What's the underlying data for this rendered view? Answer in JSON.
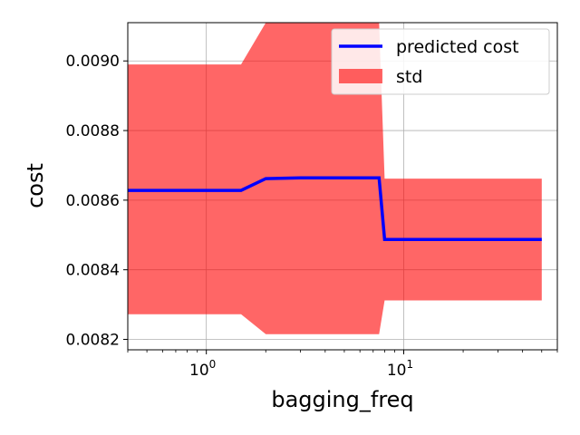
{
  "chart_data": {
    "type": "line",
    "title": "",
    "xlabel": "bagging_freq",
    "ylabel": "cost",
    "xscale": "log",
    "xlim": [
      0.4,
      60
    ],
    "ylim": [
      0.00817,
      0.00911
    ],
    "grid": true,
    "legend_position": "top-right",
    "x_ticks": [
      {
        "base": "10",
        "exp": "0",
        "value": 1
      },
      {
        "base": "10",
        "exp": "1",
        "value": 10
      }
    ],
    "y_ticks": [
      "0.0082",
      "0.0084",
      "0.0086",
      "0.0088",
      "0.0090"
    ],
    "series": [
      {
        "name": "predicted cost",
        "kind": "line",
        "color": "#0000ff",
        "x": [
          0.4,
          1.5,
          2.0,
          3.0,
          7.5,
          8.0,
          50
        ],
        "y": [
          0.008628,
          0.008628,
          0.008662,
          0.008664,
          0.008664,
          0.008487,
          0.008487
        ]
      },
      {
        "name": "std",
        "kind": "band",
        "color": "#ff0000",
        "opacity": 0.6,
        "x": [
          0.4,
          1.5,
          2.0,
          7.5,
          8.0,
          50
        ],
        "upper": [
          0.00899,
          0.00899,
          0.00911,
          0.00911,
          0.008662,
          0.008662
        ],
        "lower": [
          0.008272,
          0.008272,
          0.008215,
          0.008215,
          0.008312,
          0.008312
        ]
      }
    ]
  }
}
